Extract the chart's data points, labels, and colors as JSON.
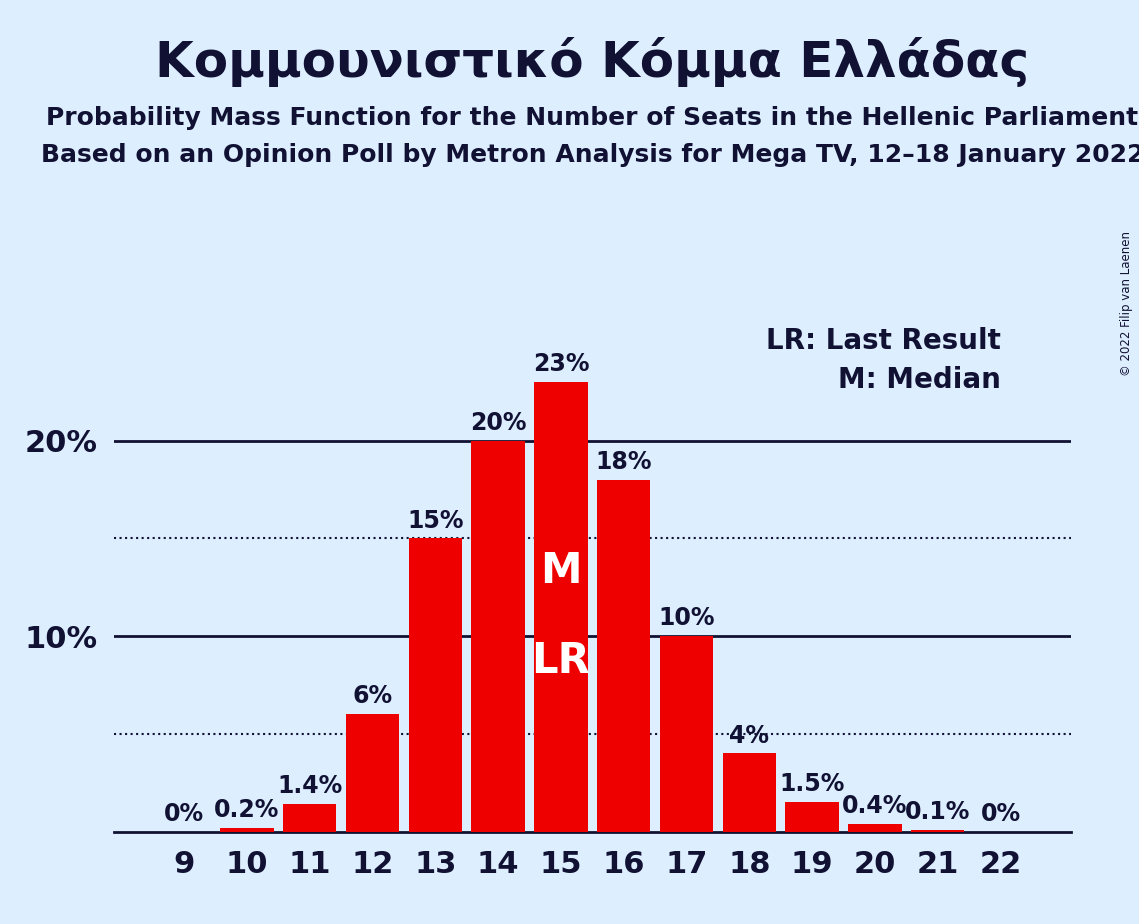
{
  "title": "Κομμουνιστικό Κόμμα Ελλάδας",
  "subtitle1": "Probability Mass Function for the Number of Seats in the Hellenic Parliament",
  "subtitle2": "Based on an Opinion Poll by Metron Analysis for Mega TV, 12–18 January 2022",
  "copyright": "© 2022 Filip van Laenen",
  "categories": [
    9,
    10,
    11,
    12,
    13,
    14,
    15,
    16,
    17,
    18,
    19,
    20,
    21,
    22
  ],
  "values": [
    0.0,
    0.2,
    1.4,
    6.0,
    15.0,
    20.0,
    23.0,
    18.0,
    10.0,
    4.0,
    1.5,
    0.4,
    0.1,
    0.0
  ],
  "bar_color": "#ee0000",
  "background_color": "#ddeeff",
  "label_color": "#111133",
  "median_seat": 15,
  "last_result_seat": 15,
  "median_label": "M",
  "lr_label": "LR",
  "legend_lr": "LR: Last Result",
  "legend_m": "M: Median",
  "dotted_lines": [
    5.0,
    15.0
  ],
  "ylim": [
    0,
    26
  ],
  "title_fontsize": 36,
  "subtitle_fontsize": 18,
  "bar_label_fontsize": 17,
  "axis_tick_fontsize": 22,
  "legend_fontsize": 20,
  "bar_label_strings": [
    "0%",
    "0.2%",
    "1.4%",
    "6%",
    "15%",
    "20%",
    "23%",
    "18%",
    "10%",
    "4%",
    "1.5%",
    "0.4%",
    "0.1%",
    "0%"
  ]
}
